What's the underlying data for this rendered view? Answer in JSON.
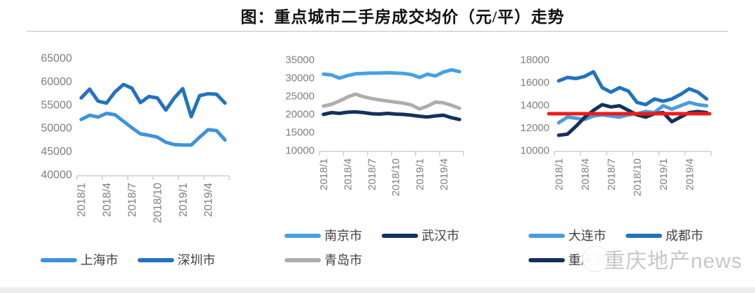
{
  "title": "图：重点城市二手房成交均价（元/平）走势",
  "watermark": {
    "text": "重庆地产news"
  },
  "colors": {
    "light_blue_shanghai": "#3E92DC",
    "medium_blue_shenzhen": "#2272C0",
    "light_blue_nanjing": "#47A0E4",
    "navy_wuhan": "#14305C",
    "gray_qingdao": "#AFACAC",
    "light_blue_dalian": "#4C9CDD",
    "medium_blue_chengdu": "#2273BE",
    "navy_chongqing": "#14305C",
    "red_reference": "#EE1A1A",
    "axis_gray": "#cfcfcf",
    "tick_text_gray": "#7e7e7e"
  },
  "chart_data": [
    {
      "type": "line",
      "unit": "元/平",
      "x": [
        "2018/1",
        "2018/2",
        "2018/3",
        "2018/4",
        "2018/5",
        "2018/6",
        "2018/7",
        "2018/8",
        "2018/9",
        "2018/10",
        "2018/11",
        "2018/12",
        "2019/1",
        "2019/2",
        "2019/3",
        "2019/4",
        "2019/5",
        "2019/6"
      ],
      "xtick_labels": [
        "2018/1",
        "2018/4",
        "2018/7",
        "2018/10",
        "2019/1",
        "2019/4"
      ],
      "ylim": [
        40000,
        65000
      ],
      "yticks": [
        65000,
        60000,
        55000,
        50000,
        45000,
        40000
      ],
      "grid": false,
      "legend_position": "bottom",
      "series": [
        {
          "name": "上海市",
          "color": "#3E92DC",
          "values": [
            51800,
            52700,
            52300,
            53100,
            52800,
            51400,
            50000,
            48700,
            48400,
            48000,
            46900,
            46400,
            46300,
            46300,
            48000,
            49600,
            49400,
            47400
          ]
        },
        {
          "name": "深圳市",
          "color": "#2272C0",
          "values": [
            56400,
            58300,
            55700,
            55300,
            57700,
            59300,
            58500,
            55400,
            56700,
            56400,
            53800,
            56400,
            58400,
            52400,
            56900,
            57300,
            57200,
            55300
          ]
        }
      ],
      "legend_rows": [
        [
          "上海市",
          "深圳市"
        ]
      ]
    },
    {
      "type": "line",
      "unit": "元/平",
      "x": [
        "2018/1",
        "2018/2",
        "2018/3",
        "2018/4",
        "2018/5",
        "2018/6",
        "2018/7",
        "2018/8",
        "2018/9",
        "2018/10",
        "2018/11",
        "2018/12",
        "2019/1",
        "2019/2",
        "2019/3",
        "2019/4",
        "2019/5",
        "2019/6"
      ],
      "xtick_labels": [
        "2018/1",
        "2018/4",
        "2018/7",
        "2018/10",
        "2019/1",
        "2019/4"
      ],
      "ylim": [
        10000,
        35000
      ],
      "yticks": [
        35000,
        30000,
        25000,
        20000,
        15000,
        10000
      ],
      "grid": false,
      "legend_position": "bottom",
      "series": [
        {
          "name": "南京市",
          "color": "#47A0E4",
          "values": [
            30900,
            30700,
            29800,
            30500,
            31000,
            31100,
            31200,
            31200,
            31300,
            31200,
            31100,
            30800,
            30000,
            30900,
            30400,
            31500,
            32100,
            31600
          ]
        },
        {
          "name": "武汉市",
          "color": "#14305C",
          "values": [
            19800,
            20300,
            20100,
            20400,
            20500,
            20300,
            20000,
            19900,
            20100,
            19900,
            19800,
            19600,
            19300,
            19100,
            19400,
            19600,
            18900,
            18400
          ]
        },
        {
          "name": "青岛市",
          "color": "#AFACAC",
          "values": [
            22100,
            22600,
            23500,
            24600,
            25400,
            24700,
            24200,
            23800,
            23500,
            23200,
            22900,
            22400,
            21300,
            22100,
            23200,
            23000,
            22300,
            21500
          ]
        }
      ],
      "legend_rows": [
        [
          "南京市",
          "武汉市"
        ],
        [
          "青岛市"
        ]
      ]
    },
    {
      "type": "line",
      "unit": "元/平",
      "x": [
        "2018/1",
        "2018/2",
        "2018/3",
        "2018/4",
        "2018/5",
        "2018/6",
        "2018/7",
        "2018/8",
        "2018/9",
        "2018/10",
        "2018/11",
        "2018/12",
        "2019/1",
        "2019/2",
        "2019/3",
        "2019/4",
        "2019/5",
        "2019/6"
      ],
      "xtick_labels": [
        "2018/1",
        "2018/4",
        "2018/7",
        "2018/10",
        "2019/1",
        "2019/4"
      ],
      "ylim": [
        10000,
        18000
      ],
      "yticks": [
        18000,
        16000,
        14000,
        12000,
        10000
      ],
      "grid": false,
      "legend_position": "bottom",
      "ref_line": {
        "value": 13200,
        "color": "#EE1A1A"
      },
      "series": [
        {
          "name": "大连市",
          "color": "#4C9CDD",
          "values": [
            12400,
            12900,
            12800,
            12700,
            13000,
            13100,
            13000,
            12900,
            13100,
            13200,
            13400,
            13300,
            13900,
            13600,
            13900,
            14200,
            14000,
            13900
          ]
        },
        {
          "name": "成都市",
          "color": "#2273BE",
          "values": [
            16100,
            16400,
            16300,
            16500,
            16900,
            15500,
            15100,
            15500,
            15200,
            14200,
            14000,
            14500,
            14300,
            14500,
            14900,
            15400,
            15100,
            14500
          ]
        },
        {
          "name": "重庆市",
          "color": "#14305C",
          "values": [
            11300,
            11400,
            12100,
            12900,
            13500,
            14000,
            13800,
            13900,
            13500,
            13100,
            12900,
            13200,
            13300,
            12500,
            12900,
            13300,
            13400,
            13300
          ]
        }
      ],
      "legend_rows": [
        [
          "大连市",
          "成都市"
        ],
        [
          "重庆市"
        ]
      ]
    }
  ]
}
